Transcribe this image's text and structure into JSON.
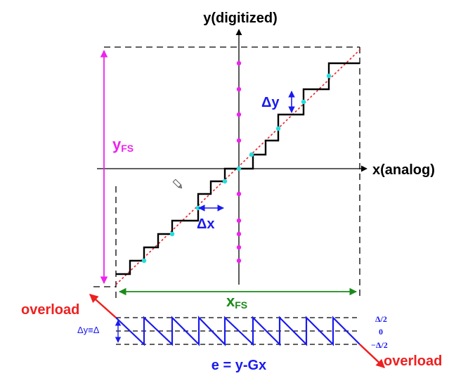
{
  "labels": {
    "y_axis": "y(digitized)",
    "x_axis": "x(analog)",
    "y_fs_main": "y",
    "y_fs_sub": "FS",
    "x_fs_main": "x",
    "x_fs_sub": "FS",
    "delta_y": "Δy",
    "delta_x": "Δx",
    "overload_left": "overload",
    "overload_right": "overload",
    "error_eq": "e = y-Gx",
    "delta_y_eq": "Δy≡Δ",
    "err_top": "Δ/2",
    "err_zero": "0",
    "err_bottom": "−Δ/2"
  },
  "colors": {
    "staircase": "#000000",
    "ideal_line": "#e8202a",
    "sample_dot": "#22dddd",
    "level_dot": "#ee22ee",
    "y_fs": "#ee22ee",
    "x_fs": "#1a8a1a",
    "blue": "#1a1aee",
    "overload": "#ee2020"
  }
}
